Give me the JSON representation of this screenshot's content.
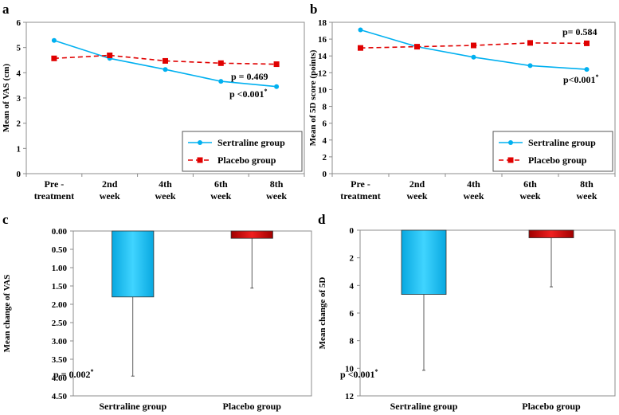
{
  "colors": {
    "sertraline": "#00b0f0",
    "placebo": "#e00000",
    "sertraline_bar": "#00c8f8",
    "placebo_bar": "#d81818"
  },
  "chart_data": [
    {
      "panel": "a",
      "type": "line",
      "categories": [
        [
          "Pre -",
          "treatment"
        ],
        [
          "2nd",
          "week"
        ],
        [
          "4th",
          "week"
        ],
        [
          "6th",
          "week"
        ],
        [
          "8th",
          "week"
        ]
      ],
      "series": [
        {
          "name": "Sertraline group",
          "values": [
            5.28,
            4.57,
            4.13,
            3.66,
            3.45
          ]
        },
        {
          "name": "Placebo group",
          "values": [
            4.57,
            4.69,
            4.47,
            4.38,
            4.34
          ]
        }
      ],
      "ylabel": "Mean of VAS (cm)",
      "ylim": [
        0,
        6
      ],
      "yticks": [
        "0",
        "1",
        "2",
        "3",
        "4",
        "5",
        "6"
      ],
      "annotations": [
        {
          "text": "p = 0.469",
          "series": "Placebo group"
        },
        {
          "text": "p <0.001",
          "sup": "*",
          "series": "Sertraline group"
        }
      ],
      "legend": "bottom-right"
    },
    {
      "panel": "b",
      "type": "line",
      "categories": [
        [
          "Pre -",
          "treatment"
        ],
        [
          "2nd",
          "week"
        ],
        [
          "4th",
          "week"
        ],
        [
          "6th",
          "week"
        ],
        [
          "8th",
          "week"
        ]
      ],
      "series": [
        {
          "name": "Sertraline group",
          "values": [
            17.1,
            15.1,
            13.85,
            12.85,
            12.4
          ]
        },
        {
          "name": "Placebo group",
          "values": [
            14.95,
            15.1,
            15.25,
            15.55,
            15.5
          ]
        }
      ],
      "ylabel": "Mean of 5D score (points)",
      "ylim": [
        0,
        18
      ],
      "yticks": [
        "0",
        "2",
        "4",
        "6",
        "8",
        "10",
        "12",
        "14",
        "16",
        "18"
      ],
      "annotations": [
        {
          "text": "p= 0.584",
          "series": "Placebo group"
        },
        {
          "text": "p<0.001",
          "sup": "*",
          "series": "Sertraline group"
        }
      ],
      "legend": "bottom-right"
    },
    {
      "panel": "c",
      "type": "bar",
      "categories": [
        "Sertraline group",
        "Placebo group"
      ],
      "values": [
        1.8,
        0.2
      ],
      "error_upper": [
        3.96,
        1.56
      ],
      "ylabel": "Mean change of VAS",
      "ylim": [
        0,
        4.5
      ],
      "y_inverted": true,
      "yticks": [
        "0.00",
        "0.50",
        "1.00",
        "1.50",
        "2.00",
        "2.50",
        "3.00",
        "3.50",
        "4.00",
        "4.50"
      ],
      "annotations": [
        {
          "text": "p = 0.002",
          "sup": "*"
        }
      ]
    },
    {
      "panel": "d",
      "type": "bar",
      "categories": [
        "Sertraline group",
        "Placebo group"
      ],
      "values": [
        4.65,
        0.55
      ],
      "error_upper": [
        10.15,
        4.1
      ],
      "ylabel": "Mean change of 5D",
      "ylim": [
        0,
        12
      ],
      "y_inverted": true,
      "yticks": [
        "0",
        "2",
        "4",
        "6",
        "8",
        "10",
        "12"
      ],
      "annotations": [
        {
          "text": "p <0.001",
          "sup": "*"
        }
      ]
    }
  ]
}
